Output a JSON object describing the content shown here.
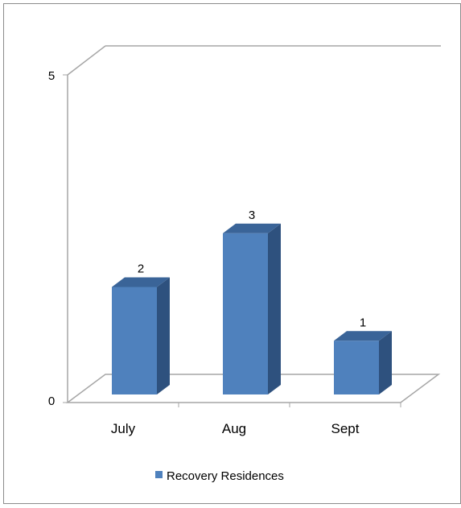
{
  "chart_data": {
    "type": "bar",
    "style": "3d-column",
    "categories": [
      "July",
      "Aug",
      "Sept"
    ],
    "series": [
      {
        "name": "Recovery Residences",
        "values": [
          2,
          3,
          1
        ],
        "color": "#4f81bd",
        "side_color": "#2e517e",
        "top_color": "#3a6498"
      }
    ],
    "data_labels": [
      "2",
      "3",
      "1"
    ],
    "ylim": [
      0,
      5
    ],
    "y_ticks": [
      "0",
      "5"
    ],
    "grid": false,
    "legend_position": "bottom",
    "colors": {
      "frame": "#8c8c8c",
      "axis_lines": "#a6a6a6",
      "text": "#000000"
    }
  }
}
